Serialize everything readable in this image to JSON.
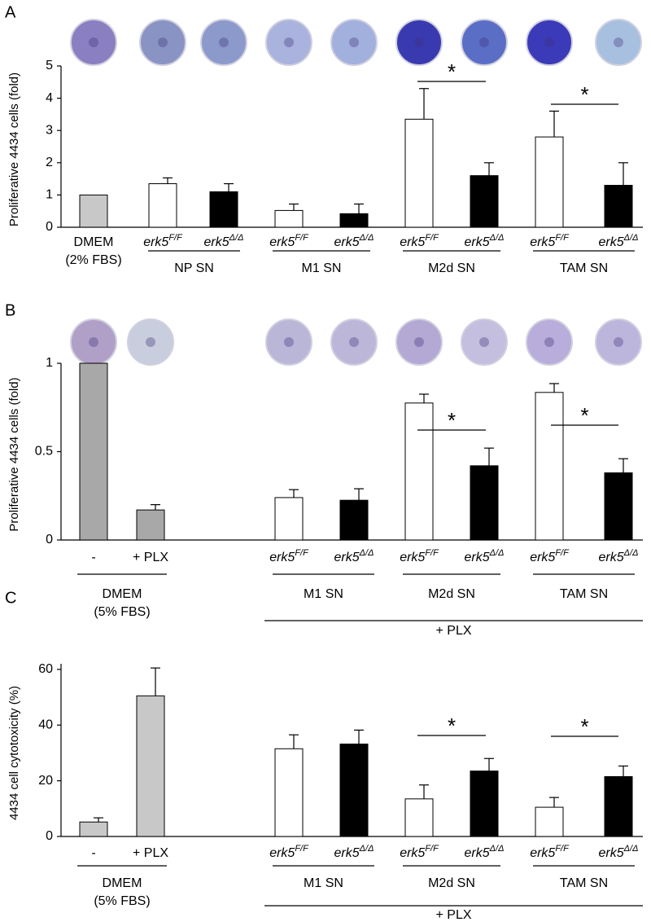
{
  "chart_data": [
    {
      "type": "bar",
      "panel": "A",
      "ylabel": "Proliferative 4434 cells (fold)",
      "categories": [
        null,
        {
          "gene": "erk5",
          "genotype": "F/F"
        },
        {
          "gene": "erk5",
          "genotype": "Δ/Δ"
        },
        {
          "gene": "erk5",
          "genotype": "F/F"
        },
        {
          "gene": "erk5",
          "genotype": "Δ/Δ"
        },
        {
          "gene": "erk5",
          "genotype": "F/F"
        },
        {
          "gene": "erk5",
          "genotype": "Δ/Δ"
        },
        {
          "gene": "erk5",
          "genotype": "F/F"
        },
        {
          "gene": "erk5",
          "genotype": "Δ/Δ"
        }
      ],
      "values": [
        1.0,
        1.35,
        1.1,
        0.52,
        0.42,
        3.35,
        1.6,
        2.8,
        1.3
      ],
      "errors": [
        null,
        0.18,
        0.25,
        0.2,
        0.3,
        0.95,
        0.4,
        0.8,
        0.7
      ],
      "colors": [
        "#c8c8c8",
        "#ffffff",
        "#000000",
        "#ffffff",
        "#000000",
        "#ffffff",
        "#000000",
        "#ffffff",
        "#000000"
      ],
      "groups": [
        {
          "lines": [
            "DMEM",
            "(2% FBS)"
          ]
        },
        {
          "lines": [
            "NP SN"
          ]
        },
        {
          "lines": [
            "M1 SN"
          ]
        },
        {
          "lines": [
            "M2d SN"
          ]
        },
        {
          "lines": [
            "TAM SN"
          ]
        }
      ],
      "annotations": [
        "*",
        "*"
      ],
      "ylim": [
        0,
        5
      ],
      "yticks": [
        0,
        1,
        2,
        3,
        4,
        5
      ]
    },
    {
      "type": "bar",
      "panel": "B",
      "ylabel": "Proliferative 4434 cells (fold)",
      "categories": [
        "-",
        "+ PLX",
        {
          "gene": "erk5",
          "genotype": "F/F"
        },
        {
          "gene": "erk5",
          "genotype": "Δ/Δ"
        },
        {
          "gene": "erk5",
          "genotype": "F/F"
        },
        {
          "gene": "erk5",
          "genotype": "Δ/Δ"
        },
        {
          "gene": "erk5",
          "genotype": "F/F"
        },
        {
          "gene": "erk5",
          "genotype": "Δ/Δ"
        }
      ],
      "values": [
        1.0,
        0.17,
        0.24,
        0.225,
        0.775,
        0.42,
        0.835,
        0.38
      ],
      "errors": [
        null,
        0.03,
        0.045,
        0.065,
        0.05,
        0.1,
        0.05,
        0.08
      ],
      "colors": [
        "#a8a8a8",
        "#a8a8a8",
        "#ffffff",
        "#000000",
        "#ffffff",
        "#000000",
        "#ffffff",
        "#000000"
      ],
      "groups": [
        {
          "lines": [
            "DMEM",
            "(5% FBS)"
          ]
        },
        {
          "lines": [
            "M1 SN"
          ]
        },
        {
          "lines": [
            "M2d SN"
          ]
        },
        {
          "lines": [
            "TAM SN"
          ]
        }
      ],
      "bracket_label": "+ PLX",
      "annotations": [
        "*",
        "*"
      ],
      "ylim": [
        0,
        1
      ],
      "yticks": [
        0,
        0.5,
        1
      ]
    },
    {
      "type": "bar",
      "panel": "C",
      "ylabel": "4434 cell cytotoxicity  (%)",
      "categories": [
        "-",
        "+ PLX",
        {
          "gene": "erk5",
          "genotype": "F/F"
        },
        {
          "gene": "erk5",
          "genotype": "Δ/Δ"
        },
        {
          "gene": "erk5",
          "genotype": "F/F"
        },
        {
          "gene": "erk5",
          "genotype": "Δ/Δ"
        },
        {
          "gene": "erk5",
          "genotype": "F/F"
        },
        {
          "gene": "erk5",
          "genotype": "Δ/Δ"
        }
      ],
      "values": [
        5.2,
        50.5,
        31.5,
        33.2,
        13.5,
        23.5,
        10.5,
        21.5
      ],
      "errors": [
        1.5,
        10,
        5,
        5,
        5,
        4.5,
        3.5,
        3.8
      ],
      "colors": [
        "#c8c8c8",
        "#c8c8c8",
        "#ffffff",
        "#000000",
        "#ffffff",
        "#000000",
        "#ffffff",
        "#000000"
      ],
      "groups": [
        {
          "lines": [
            "DMEM",
            "(5% FBS)"
          ]
        },
        {
          "lines": [
            "M1 SN"
          ]
        },
        {
          "lines": [
            "M2d SN"
          ]
        },
        {
          "lines": [
            "TAM SN"
          ]
        }
      ],
      "bracket_label": "+ PLX",
      "annotations": [
        "*",
        "*"
      ],
      "ylim": [
        0,
        62
      ],
      "yticks": [
        0,
        20,
        40,
        60
      ]
    }
  ]
}
